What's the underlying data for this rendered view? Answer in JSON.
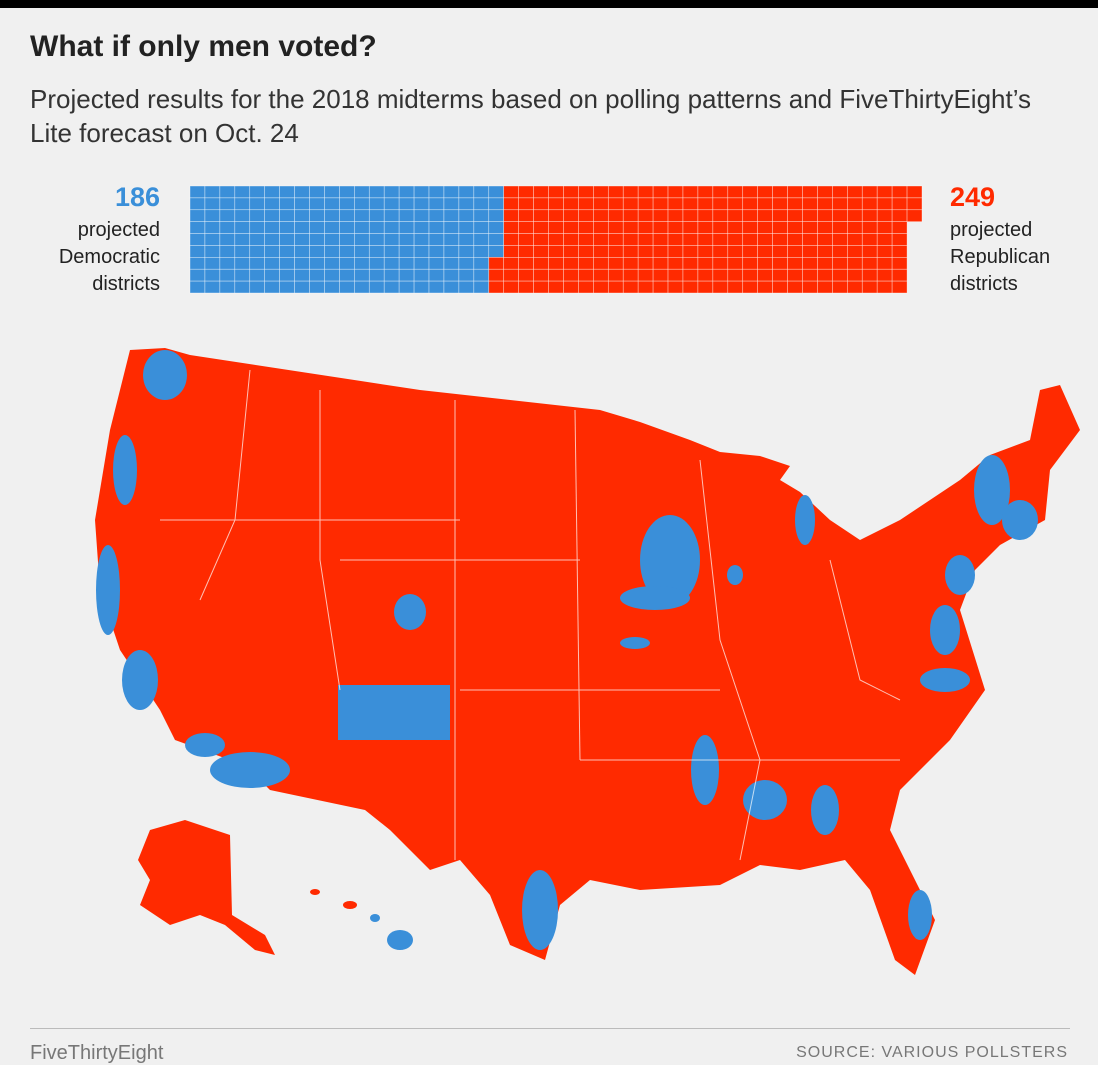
{
  "header": {
    "title": "What if only men voted?",
    "subtitle": "Projected results for the 2018 midterms based on polling patterns and FiveThirtyEight’s Lite forecast on Oct. 24"
  },
  "summary": {
    "democratic": {
      "value": 186,
      "label": "projected Democratic districts",
      "color": "#3a8fd9"
    },
    "republican": {
      "value": 249,
      "label": "projected Republican districts",
      "color": "#ff2a00"
    }
  },
  "footer": {
    "brand": "FiveThirtyEight",
    "source": "SOURCE: VARIOUS POLLSTERS"
  }
}
